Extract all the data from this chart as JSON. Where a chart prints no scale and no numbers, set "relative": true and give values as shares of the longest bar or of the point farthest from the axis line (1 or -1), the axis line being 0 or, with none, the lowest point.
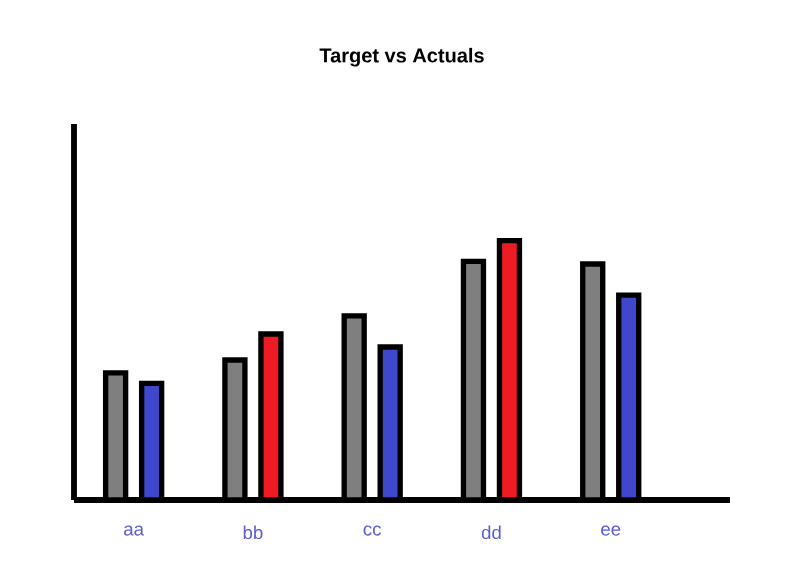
{
  "chart_data": {
    "type": "bar",
    "title": "Target vs Actuals",
    "relative": true,
    "categories": [
      "aa",
      "bb",
      "cc",
      "dd",
      "ee"
    ],
    "series": [
      {
        "color": "#7f7f7f",
        "values": [
          0.49,
          0.54,
          0.71,
          0.92,
          0.91
        ]
      },
      {
        "colors": [
          "#3f48cc",
          "#ed1c24",
          "#3f48cc",
          "#ed1c24",
          "#3f48cc"
        ],
        "values": [
          0.45,
          0.64,
          0.59,
          1,
          0.79
        ]
      }
    ]
  }
}
